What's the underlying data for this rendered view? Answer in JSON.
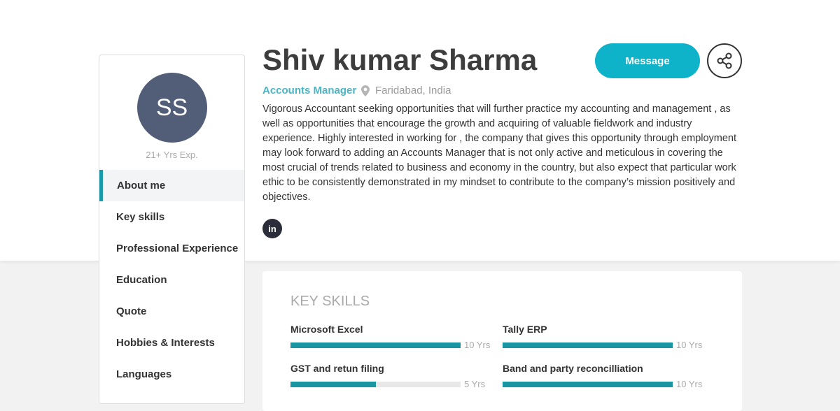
{
  "profile": {
    "initials": "SS",
    "experience": "21+ Yrs Exp.",
    "name": "Shiv kumar Sharma",
    "role": "Accounts Manager",
    "location": "Faridabad, India",
    "bio": "Vigorous Accountant seeking opportunities that will further practice my accounting and management , as well as opportunities that encourage the growth and acquiring of valuable fieldwork and industry experience. Highly interested in working for , the company that gives this opportunity through employment may look forward to adding an Accounts Manager that is not only active and meticulous in covering the most crucial of trends related to business and economy in the country, but also expect that particular work ethic to be consistently demonstrated in my mindset to contribute to the company’s mission positively and objectives.",
    "linkedin": "in"
  },
  "actions": {
    "message": "Message"
  },
  "sidebar": {
    "items": [
      {
        "label": "About me",
        "active": true
      },
      {
        "label": "Key skills"
      },
      {
        "label": "Professional Experience"
      },
      {
        "label": "Education"
      },
      {
        "label": "Quote"
      },
      {
        "label": "Hobbies & Interests"
      },
      {
        "label": "Languages"
      }
    ]
  },
  "key_skills": {
    "title": "KEY SKILLS",
    "items": [
      {
        "name": "Microsoft Excel",
        "years": "10 Yrs",
        "fill_percent": 100
      },
      {
        "name": "Tally ERP",
        "years": "10 Yrs",
        "fill_percent": 100
      },
      {
        "name": "GST and retun filing",
        "years": "5 Yrs",
        "fill_percent": 50
      },
      {
        "name": "Band and party reconcilliation",
        "years": "10 Yrs",
        "fill_percent": 100
      }
    ]
  },
  "colors": {
    "accent": "#0fb3c9",
    "bar": "#1a95a2",
    "avatar": "#525d78"
  }
}
